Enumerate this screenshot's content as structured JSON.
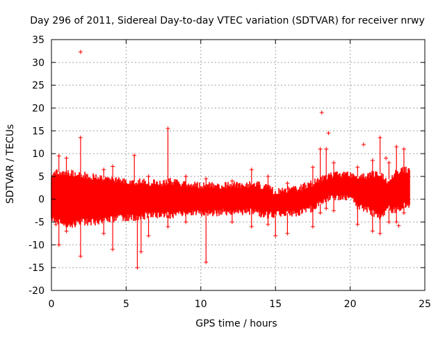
{
  "chart_data": {
    "type": "scatter",
    "title": "Day 296 of 2011, Sidereal Day-to-day VTEC variation (SDTVAR) for receiver nrwy",
    "xlabel": "GPS time / hours",
    "ylabel": "SDTVAR / TECUs",
    "xlim": [
      0,
      25
    ],
    "ylim": [
      -20,
      35
    ],
    "xticks": [
      0,
      5,
      10,
      15,
      20,
      25
    ],
    "yticks": [
      -20,
      -15,
      -10,
      -5,
      0,
      5,
      10,
      15,
      20,
      25,
      30,
      35
    ],
    "grid": true,
    "marker": "+",
    "color": "#ff0000",
    "series": [
      {
        "name": "SDTVAR",
        "envelope_x": [
          0.0,
          0.5,
          1.0,
          1.5,
          2.0,
          2.5,
          3.0,
          3.5,
          4.0,
          4.5,
          5.0,
          5.5,
          6.0,
          6.5,
          7.0,
          7.5,
          8.0,
          8.5,
          9.0,
          9.5,
          10.0,
          10.5,
          11.0,
          11.5,
          12.0,
          12.5,
          13.0,
          13.5,
          14.0,
          14.5,
          15.0,
          15.5,
          16.0,
          16.5,
          17.0,
          17.5,
          18.0,
          18.5,
          19.0,
          19.5,
          20.0,
          20.5,
          21.0,
          21.5,
          22.0,
          22.5,
          23.0,
          23.5,
          24.0
        ],
        "envelope_upper": [
          5.5,
          6.0,
          6.0,
          5.5,
          5.5,
          5.0,
          5.0,
          4.5,
          4.5,
          4.0,
          4.0,
          3.8,
          3.8,
          3.6,
          3.6,
          3.6,
          4.0,
          3.5,
          3.5,
          3.2,
          3.0,
          3.0,
          3.0,
          3.0,
          3.2,
          3.2,
          3.2,
          3.5,
          3.0,
          2.5,
          1.5,
          2.0,
          2.2,
          2.2,
          3.0,
          3.5,
          4.5,
          5.0,
          5.5,
          5.5,
          5.5,
          5.0,
          5.0,
          5.5,
          5.5,
          4.0,
          6.0,
          6.5,
          6.5
        ],
        "envelope_lower": [
          -4.5,
          -5.0,
          -5.5,
          -5.5,
          -5.0,
          -5.0,
          -5.0,
          -4.5,
          -4.5,
          -4.0,
          -4.0,
          -4.0,
          -3.8,
          -3.6,
          -3.6,
          -3.5,
          -3.5,
          -3.2,
          -3.0,
          -3.0,
          -3.0,
          -3.0,
          -3.0,
          -2.8,
          -2.8,
          -2.8,
          -2.8,
          -2.8,
          -3.2,
          -3.5,
          -3.5,
          -3.0,
          -3.0,
          -3.0,
          -2.5,
          -2.0,
          -1.0,
          0.0,
          0.5,
          0.5,
          0.5,
          -1.5,
          -2.0,
          -3.0,
          -4.0,
          -2.0,
          -2.5,
          -1.5,
          -1.5
        ],
        "spikes": [
          {
            "x": 0.3,
            "y": [
              6.0,
              -5.5
            ]
          },
          {
            "x": 0.5,
            "y": [
              9.5,
              -10.0
            ]
          },
          {
            "x": 1.0,
            "y": [
              9.0,
              -7.0
            ]
          },
          {
            "x": 1.95,
            "y": [
              13.5,
              -12.5
            ]
          },
          {
            "x": 3.5,
            "y": [
              6.5,
              -7.5
            ]
          },
          {
            "x": 4.1,
            "y": [
              7.2,
              -11.0
            ]
          },
          {
            "x": 5.55,
            "y": [
              9.6
            ]
          },
          {
            "x": 5.75,
            "y": [
              -15.0
            ]
          },
          {
            "x": 6.0,
            "y": [
              -11.5
            ]
          },
          {
            "x": 6.5,
            "y": [
              5.0,
              -8.0
            ]
          },
          {
            "x": 7.8,
            "y": [
              15.5,
              -6.0
            ]
          },
          {
            "x": 9.0,
            "y": [
              5.0,
              -5.0
            ]
          },
          {
            "x": 10.35,
            "y": [
              4.5,
              -13.8
            ]
          },
          {
            "x": 12.1,
            "y": [
              4.0,
              -5.0
            ]
          },
          {
            "x": 13.4,
            "y": [
              6.5,
              -6.0
            ]
          },
          {
            "x": 14.5,
            "y": [
              5.0,
              -5.5
            ]
          },
          {
            "x": 15.0,
            "y": [
              -8.0
            ]
          },
          {
            "x": 15.8,
            "y": [
              3.5,
              -7.5
            ]
          },
          {
            "x": 17.5,
            "y": [
              7.0,
              -6.0
            ]
          },
          {
            "x": 18.0,
            "y": [
              11.0,
              -3.0
            ]
          },
          {
            "x": 18.4,
            "y": [
              11.0,
              -2.0
            ]
          },
          {
            "x": 18.9,
            "y": [
              8.0,
              -2.5
            ]
          },
          {
            "x": 20.5,
            "y": [
              7.0,
              -5.5
            ]
          },
          {
            "x": 21.5,
            "y": [
              8.5,
              -7.0
            ]
          },
          {
            "x": 22.0,
            "y": [
              13.5,
              -7.5
            ]
          },
          {
            "x": 22.6,
            "y": [
              8.0,
              -5.0
            ]
          },
          {
            "x": 23.1,
            "y": [
              11.5,
              -5.0
            ]
          },
          {
            "x": 23.6,
            "y": [
              11.0,
              -3.0
            ]
          }
        ],
        "outliers": [
          {
            "x": 1.95,
            "y": 32.3
          },
          {
            "x": 18.1,
            "y": 19.0
          },
          {
            "x": 18.55,
            "y": 14.5
          },
          {
            "x": 20.9,
            "y": 12.0
          },
          {
            "x": 22.4,
            "y": 9.0
          },
          {
            "x": 23.25,
            "y": -5.8
          }
        ]
      }
    ]
  }
}
